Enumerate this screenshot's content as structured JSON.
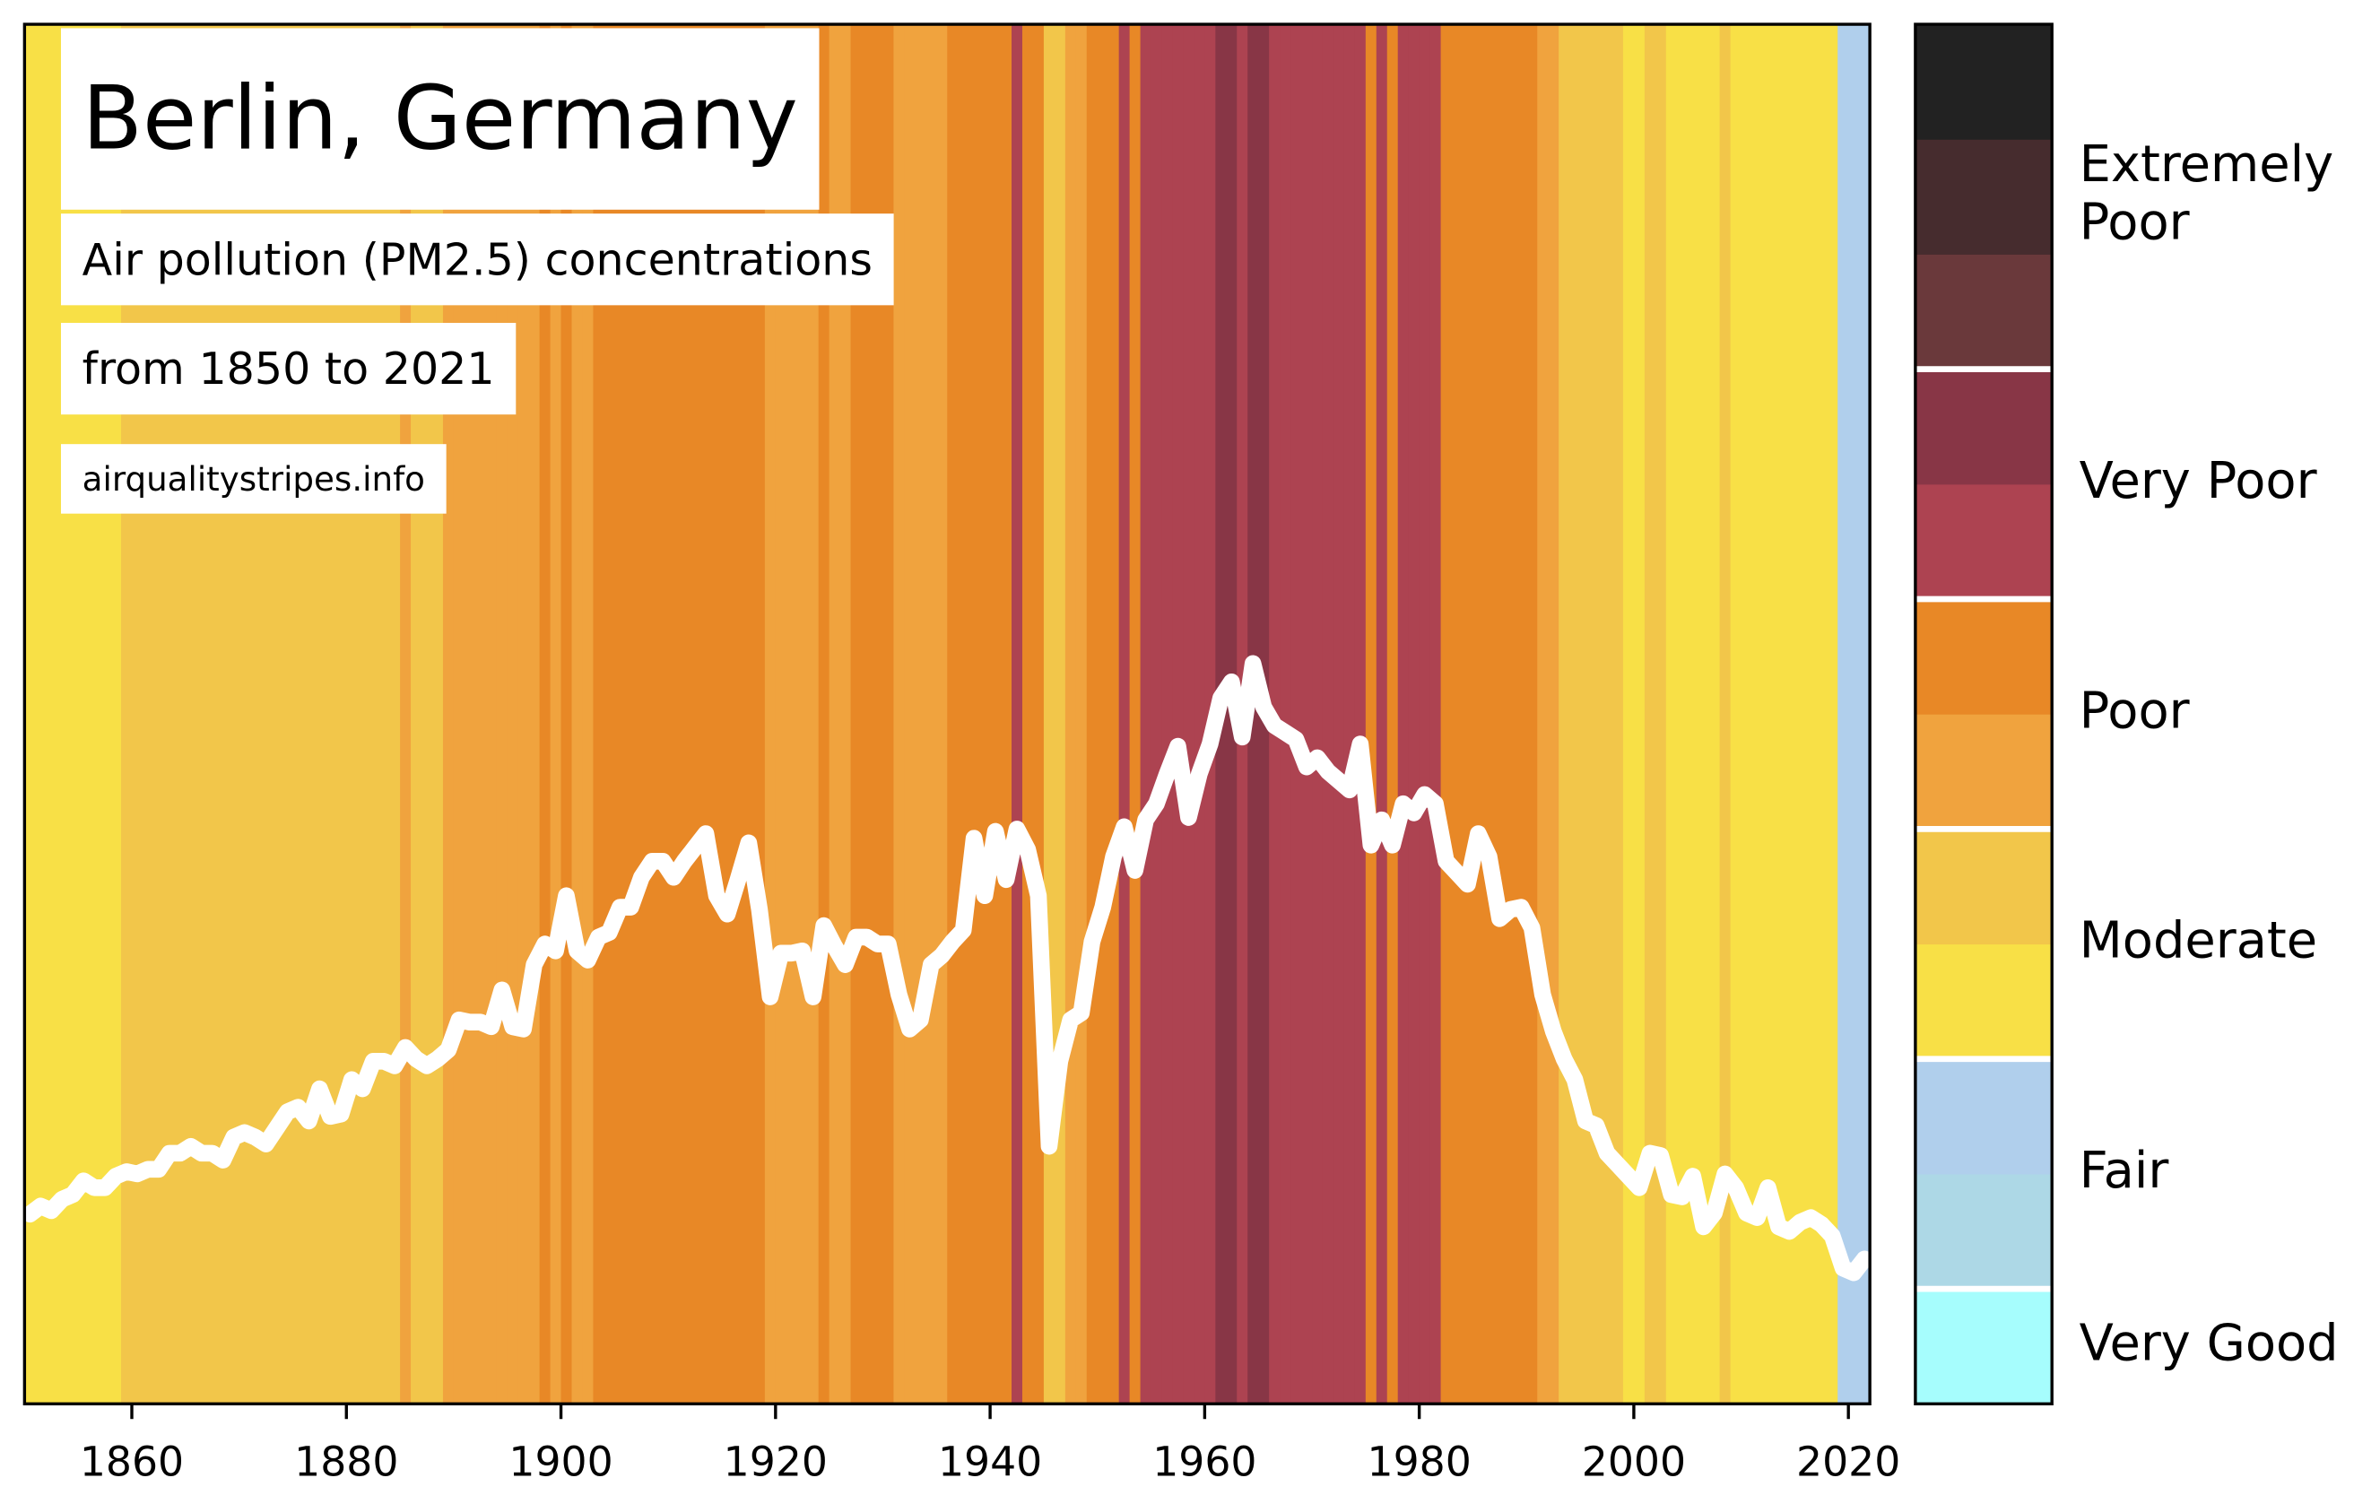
{
  "chart_data": {
    "type": "stripes",
    "title": "Berlin, Germany",
    "subtitle": "Air pollution (PM2.5) concentrations",
    "period": "from 1850 to 2021",
    "source": "airqualitystripes.info",
    "x": [
      1850,
      1851,
      1852,
      1853,
      1854,
      1855,
      1856,
      1857,
      1858,
      1859,
      1860,
      1861,
      1862,
      1863,
      1864,
      1865,
      1866,
      1867,
      1868,
      1869,
      1870,
      1871,
      1872,
      1873,
      1874,
      1875,
      1876,
      1877,
      1878,
      1879,
      1880,
      1881,
      1882,
      1883,
      1884,
      1885,
      1886,
      1887,
      1888,
      1889,
      1890,
      1891,
      1892,
      1893,
      1894,
      1895,
      1896,
      1897,
      1898,
      1899,
      1900,
      1901,
      1902,
      1903,
      1904,
      1905,
      1906,
      1907,
      1908,
      1909,
      1910,
      1911,
      1912,
      1913,
      1914,
      1915,
      1916,
      1917,
      1918,
      1919,
      1920,
      1921,
      1922,
      1923,
      1924,
      1925,
      1926,
      1927,
      1928,
      1929,
      1930,
      1931,
      1932,
      1933,
      1934,
      1935,
      1936,
      1937,
      1938,
      1939,
      1940,
      1941,
      1942,
      1943,
      1944,
      1945,
      1946,
      1947,
      1948,
      1949,
      1950,
      1951,
      1952,
      1953,
      1954,
      1955,
      1956,
      1957,
      1958,
      1959,
      1960,
      1961,
      1962,
      1963,
      1964,
      1965,
      1966,
      1967,
      1968,
      1969,
      1970,
      1971,
      1972,
      1973,
      1974,
      1975,
      1976,
      1977,
      1978,
      1979,
      1980,
      1981,
      1982,
      1983,
      1984,
      1985,
      1986,
      1987,
      1988,
      1989,
      1990,
      1991,
      1992,
      1993,
      1994,
      1995,
      1996,
      1997,
      1998,
      1999,
      2000,
      2001,
      2002,
      2003,
      2004,
      2005,
      2006,
      2007,
      2008,
      2009,
      2010,
      2011,
      2012,
      2013,
      2014,
      2015,
      2016,
      2017,
      2018,
      2019,
      2020,
      2021
    ],
    "series": [
      {
        "color": "#ffffff",
        "values": [
          8.25,
          8.6,
          8.4,
          8.9,
          9.1,
          9.7,
          9.4,
          9.4,
          9.9,
          10.1,
          10.0,
          10.2,
          10.2,
          10.9,
          10.9,
          11.2,
          10.9,
          10.9,
          10.6,
          11.6,
          11.8,
          11.6,
          11.3,
          12.0,
          12.7,
          12.9,
          12.3,
          13.7,
          12.5,
          12.6,
          14.1,
          13.7,
          14.9,
          14.9,
          14.7,
          15.5,
          15.0,
          14.7,
          15.0,
          15.4,
          16.7,
          16.6,
          16.6,
          16.4,
          18.0,
          16.4,
          16.3,
          19.1,
          20.0,
          19.7,
          22.1,
          19.7,
          19.3,
          20.3,
          20.5,
          21.6,
          21.6,
          22.9,
          23.6,
          23.6,
          22.9,
          23.6,
          24.2,
          24.8,
          22.1,
          21.3,
          22.8,
          24.4,
          21.5,
          17.7,
          19.6,
          19.6,
          19.7,
          17.7,
          20.8,
          19.9,
          19.1,
          20.3,
          20.3,
          20.0,
          20.0,
          17.8,
          16.3,
          16.7,
          19.1,
          19.5,
          20.1,
          20.6,
          24.6,
          22.1,
          24.9,
          22.8,
          25.0,
          24.1,
          22.1,
          11.2,
          14.9,
          16.7,
          17.0,
          20.1,
          21.6,
          23.8,
          25.1,
          23.2,
          25.4,
          26.1,
          27.4,
          28.6,
          25.5,
          27.4,
          28.7,
          30.7,
          31.4,
          29.0,
          32.2,
          30.3,
          29.5,
          29.2,
          28.9,
          27.7,
          28.1,
          27.5,
          27.1,
          26.7,
          28.7,
          24.3,
          25.4,
          24.3,
          26.1,
          25.7,
          26.5,
          26.1,
          23.6,
          23.1,
          22.6,
          24.8,
          23.8,
          21.1,
          21.5,
          21.6,
          20.7,
          17.8,
          16.2,
          15.0,
          14.1,
          12.3,
          12.1,
          10.9,
          10.4,
          9.9,
          9.4,
          10.9,
          10.8,
          9.1,
          9.0,
          9.9,
          7.7,
          8.3,
          10.0,
          9.4,
          8.3,
          8.1,
          9.4,
          7.7,
          7.5,
          7.9,
          8.1,
          7.8,
          7.3,
          5.9,
          5.7,
          6.3
        ]
      }
    ],
    "xlim": [
      1850,
      2022
    ],
    "ylim": [
      0,
      60
    ],
    "xticks": [
      1860,
      1880,
      1900,
      1920,
      1940,
      1960,
      1980,
      2000,
      2020
    ],
    "colorbar": {
      "bounds": [
        2.5,
        5,
        7,
        10,
        15.3,
        20,
        25,
        30,
        40,
        50,
        60
      ],
      "levels": [
        {
          "name": "Very Good",
          "colors": [
            "#a6fdfd"
          ]
        },
        {
          "name": "Fair",
          "colors": [
            "#add8e6",
            "#b0cfec"
          ]
        },
        {
          "name": "Moderate",
          "colors": [
            "#f8e046",
            "#f2c64a"
          ]
        },
        {
          "name": "Poor",
          "colors": [
            "#f0a33e",
            "#e88826"
          ]
        },
        {
          "name": "Very Poor",
          "colors": [
            "#ad4351",
            "#883646"
          ]
        },
        {
          "name": "Extremely Poor",
          "colors": [
            "#6a393b",
            "#462c2e",
            "#222222"
          ]
        }
      ]
    }
  }
}
